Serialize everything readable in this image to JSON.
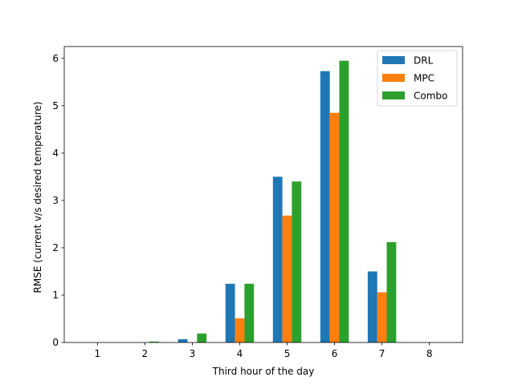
{
  "chart_data": {
    "type": "bar",
    "title": "",
    "xlabel": "Third hour of the day",
    "ylabel": "RMSE (current v/s desired temperature)",
    "categories": [
      "1",
      "2",
      "3",
      "4",
      "5",
      "6",
      "7",
      "8"
    ],
    "yticks": [
      "0",
      "1",
      "2",
      "3",
      "4",
      "5",
      "6"
    ],
    "ylim": [
      0,
      6.25
    ],
    "legend_position": "top-right",
    "series": [
      {
        "name": "DRL",
        "color": "#1f77b4",
        "values": [
          0,
          0,
          0.07,
          1.24,
          3.5,
          5.73,
          1.5,
          0
        ]
      },
      {
        "name": "MPC",
        "color": "#ff7f0e",
        "values": [
          0,
          0,
          0,
          0.51,
          2.68,
          4.85,
          1.06,
          0
        ]
      },
      {
        "name": "Combo",
        "color": "#2ca02c",
        "values": [
          0,
          0.02,
          0.19,
          1.24,
          3.4,
          5.95,
          2.12,
          0
        ]
      }
    ]
  }
}
